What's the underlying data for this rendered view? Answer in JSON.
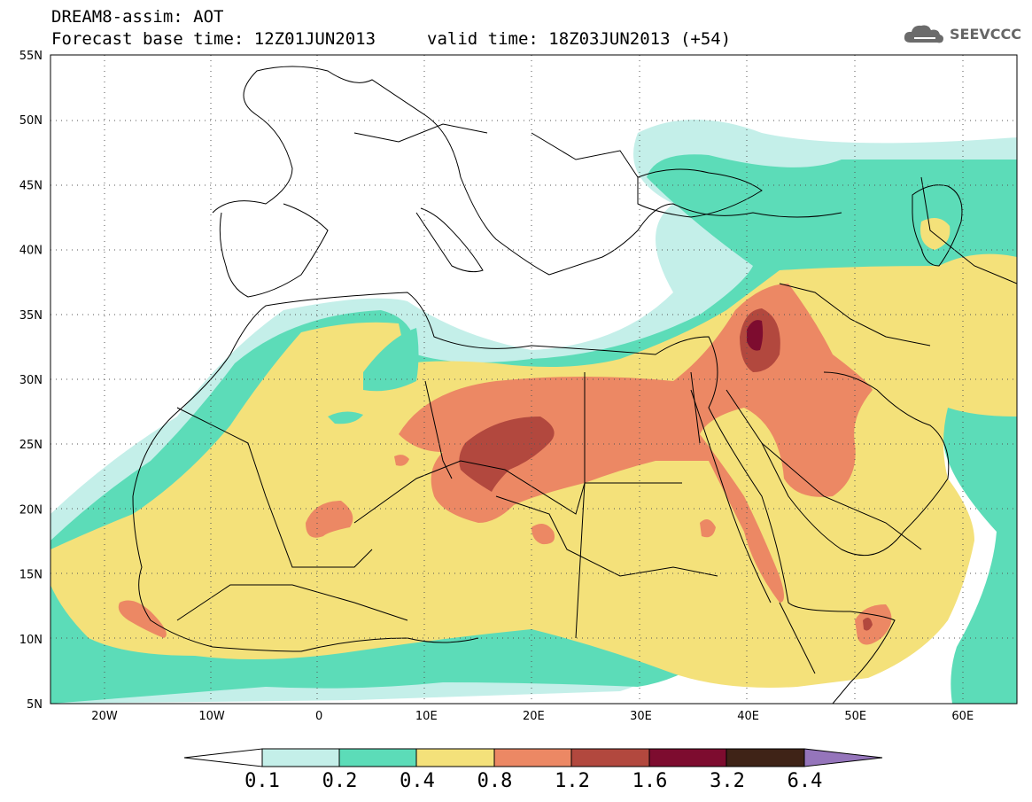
{
  "header": {
    "title": "DREAM8-assim: AOT",
    "base_time": "Forecast base time: 12Z01JUN2013",
    "valid_time": "valid time: 18Z03JUN2013 (+54)"
  },
  "logo": {
    "text": "SEEVCCC",
    "icon": "cloud-icon"
  },
  "map": {
    "lat_labels": [
      "55N",
      "50N",
      "45N",
      "40N",
      "35N",
      "30N",
      "25N",
      "20N",
      "15N",
      "10N",
      "5N"
    ],
    "lon_labels": [
      "20W",
      "10W",
      "0",
      "10E",
      "20E",
      "30E",
      "40E",
      "50E",
      "60E"
    ],
    "grid": true,
    "colors": {
      "c01": "#c4efe9",
      "c02": "#5cdcb8",
      "c04": "#f4e17a",
      "c08": "#ec8864",
      "c12": "#b2483e",
      "c16": "#7d0c2f",
      "c32": "#3f2317",
      "c64": "#9575bb"
    }
  },
  "colorbar": {
    "labels": [
      "0.1",
      "0.2",
      "0.4",
      "0.8",
      "1.2",
      "1.6",
      "3.2",
      "6.4"
    ],
    "colors": [
      "#ffffff",
      "#c4efe9",
      "#5cdcb8",
      "#f4e17a",
      "#ec8864",
      "#b2483e",
      "#7d0c2f",
      "#3f2317",
      "#9575bb"
    ]
  }
}
